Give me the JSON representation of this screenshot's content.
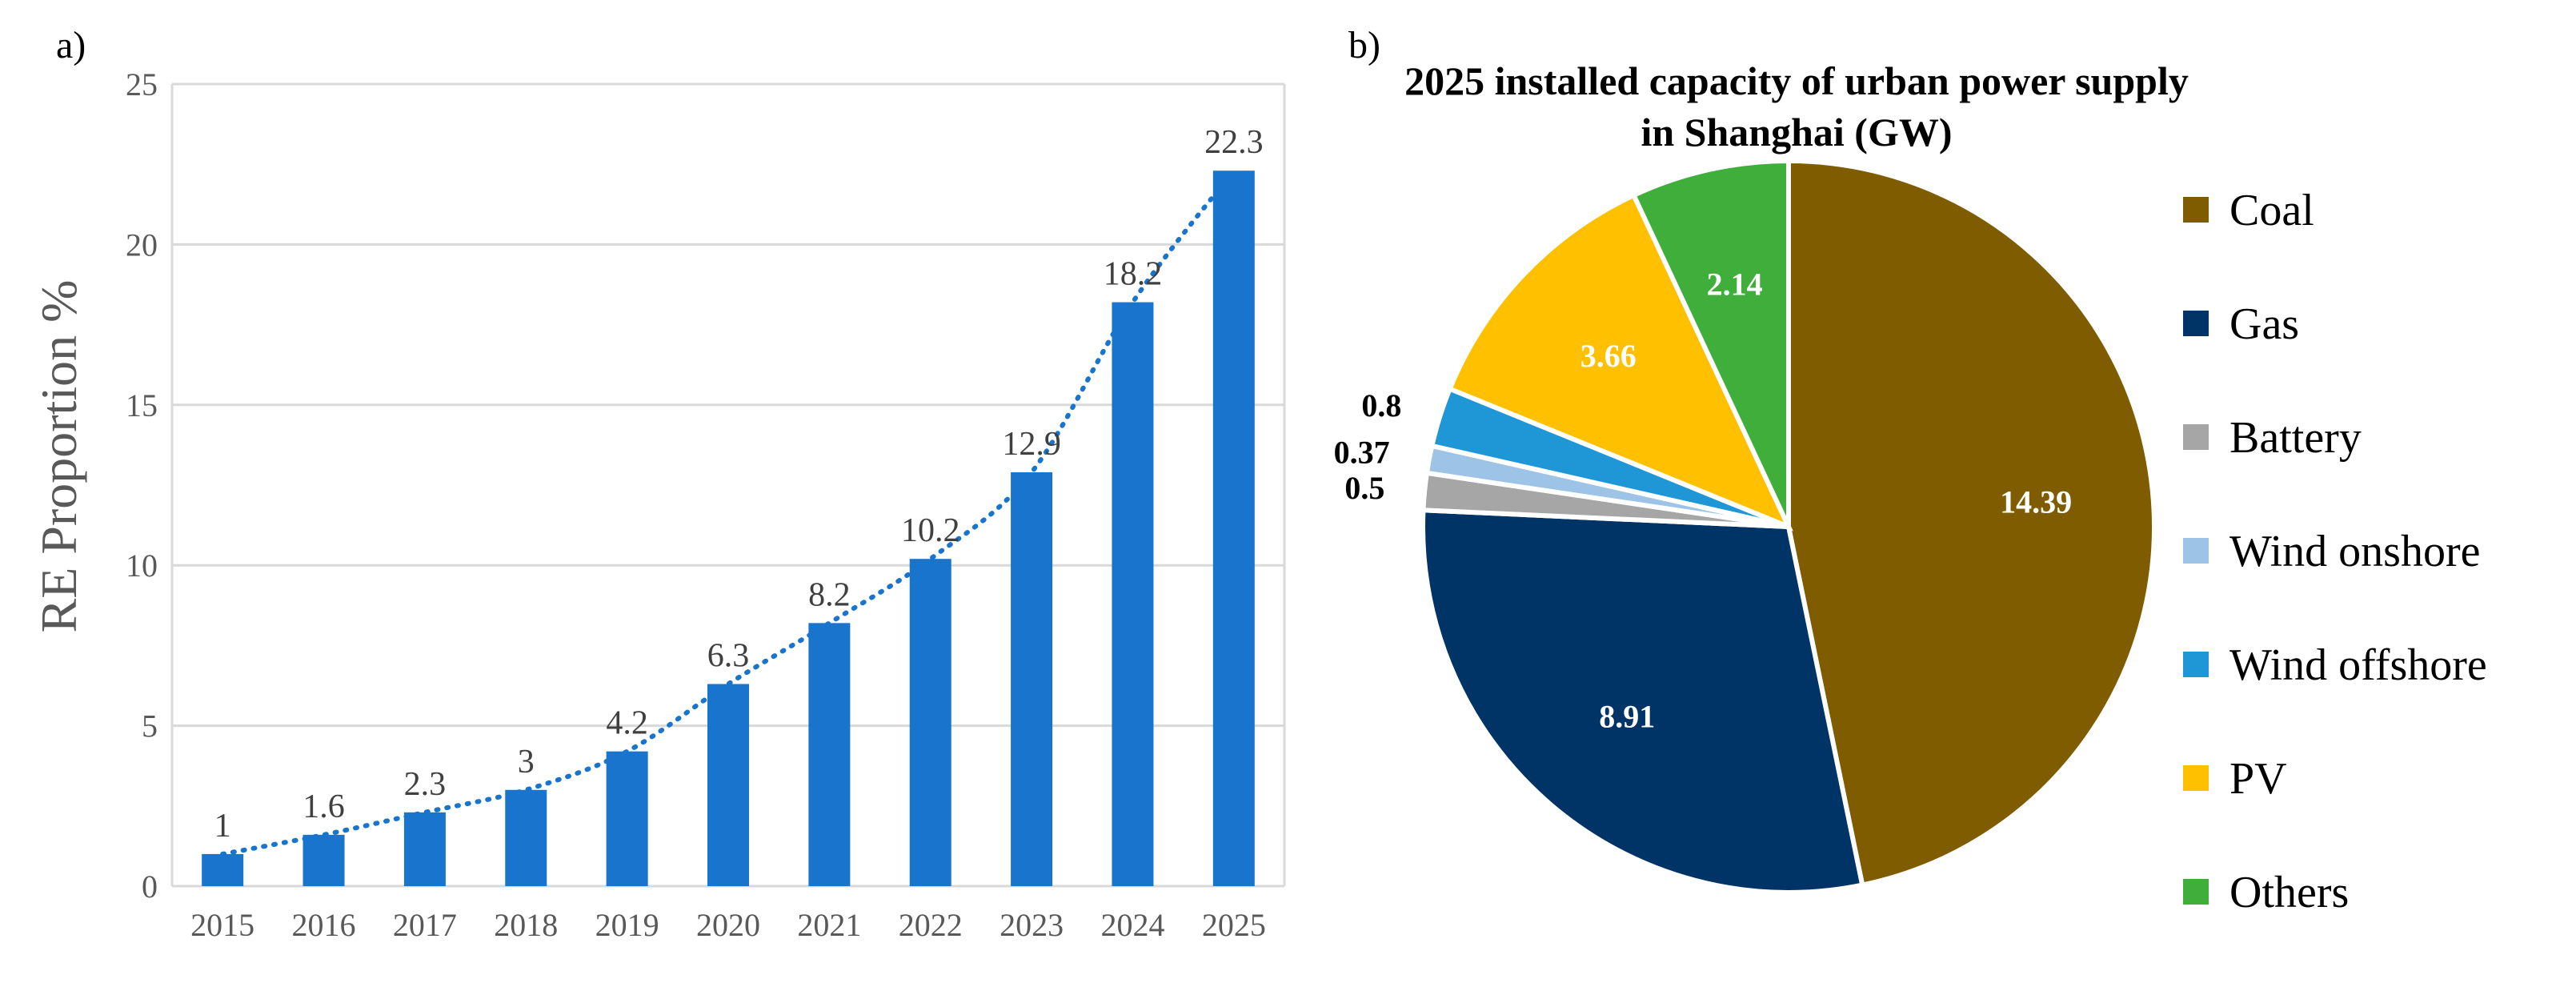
{
  "panel_a_label": "a)",
  "panel_b_label": "b)",
  "chart_data": [
    {
      "type": "bar",
      "categories": [
        "2015",
        "2016",
        "2017",
        "2018",
        "2019",
        "2020",
        "2021",
        "2022",
        "2023",
        "2024",
        "2025"
      ],
      "values": [
        1,
        1.6,
        2.3,
        3,
        4.2,
        6.3,
        8.2,
        10.2,
        12.9,
        18.2,
        22.3
      ],
      "value_labels": [
        "1",
        "1.6",
        "2.3",
        "3",
        "4.2",
        "6.3",
        "8.2",
        "10.2",
        "12.9",
        "18.2",
        "22.3"
      ],
      "ylabel": "RE Proportion %",
      "ylim": [
        0,
        25
      ],
      "yticks": [
        0,
        5,
        10,
        15,
        20,
        25
      ],
      "bar_color": "#1874CD",
      "trendline": "dotted",
      "grid": true
    },
    {
      "type": "pie",
      "title_line1": "2025 installed capacity of urban power supply",
      "title_line2": "in Shanghai (GW)",
      "labels": [
        "Coal",
        "Gas",
        "Battery",
        "Wind onshore",
        "Wind offshore",
        "PV",
        "Others"
      ],
      "values": [
        14.39,
        8.91,
        0.5,
        0.37,
        0.8,
        3.66,
        2.14
      ],
      "value_labels": [
        "14.39",
        "8.91",
        "0.5",
        "0.37",
        "0.8",
        "3.66",
        "2.14"
      ],
      "colors": [
        "#7F5C00",
        "#003366",
        "#A6A6A6",
        "#9DC3E6",
        "#1F96D6",
        "#FFC000",
        "#3FAE3A"
      ],
      "legend_position": "right"
    }
  ]
}
